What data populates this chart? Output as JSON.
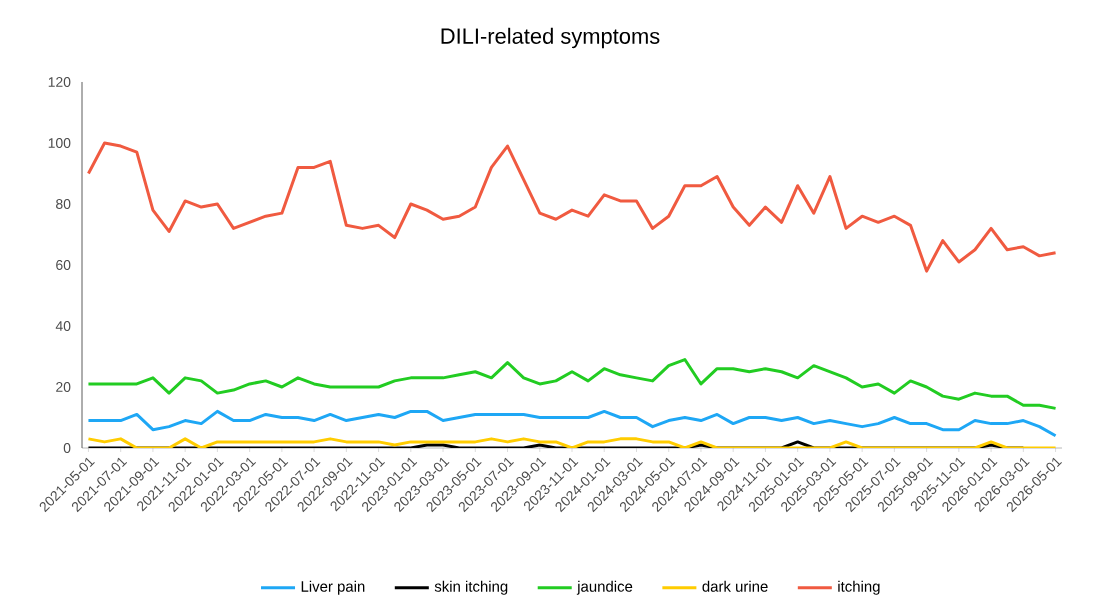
{
  "chart_data": {
    "type": "line",
    "title": "DILI-related symptoms",
    "categories": [
      "2021-05-01",
      null,
      "2021-07-01",
      null,
      "2021-09-01",
      null,
      "2021-11-01",
      null,
      "2022-01-01",
      null,
      "2022-03-01",
      null,
      "2022-05-01",
      null,
      "2022-07-01",
      null,
      "2022-09-01",
      null,
      "2022-11-01",
      null,
      "2023-01-01",
      null,
      "2023-03-01",
      null,
      "2023-05-01",
      null,
      "2023-07-01",
      null,
      "2023-09-01",
      null,
      "2023-11-01",
      null,
      "2024-01-01",
      null,
      "2024-03-01",
      null,
      "2024-05-01",
      null,
      "2024-07-01",
      null,
      "2024-09-01",
      null,
      "2024-11-01",
      null,
      "2025-01-01",
      null,
      "2025-03-01",
      null,
      "2025-05-01",
      null,
      "2025-07-01",
      null,
      "2025-09-01",
      null,
      "2025-11-01",
      null,
      "2026-01-01",
      null,
      "2026-03-01",
      null,
      "2026-05-01"
    ],
    "series": [
      {
        "name": "Liver pain",
        "color": "#1ea7f5",
        "values": [
          9,
          9,
          9,
          11,
          6,
          7,
          9,
          8,
          12,
          9,
          9,
          11,
          10,
          10,
          9,
          11,
          9,
          10,
          11,
          10,
          12,
          12,
          9,
          10,
          11,
          11,
          11,
          11,
          10,
          10,
          10,
          10,
          12,
          10,
          10,
          7,
          9,
          10,
          9,
          11,
          8,
          10,
          10,
          9,
          10,
          8,
          9,
          8,
          7,
          8,
          10,
          8,
          8,
          6,
          6,
          9,
          8,
          8,
          9,
          7,
          4
        ]
      },
      {
        "name": "skin itching",
        "color": "#000000",
        "values": [
          0,
          0,
          0,
          0,
          0,
          0,
          0,
          0,
          0,
          0,
          0,
          0,
          0,
          0,
          0,
          0,
          0,
          0,
          0,
          0,
          0,
          1,
          1,
          0,
          0,
          0,
          0,
          0,
          1,
          0,
          0,
          0,
          0,
          0,
          0,
          0,
          0,
          0,
          1,
          0,
          0,
          0,
          0,
          0,
          2,
          0,
          0,
          0,
          0,
          0,
          0,
          0,
          0,
          0,
          0,
          0,
          1,
          0,
          0,
          null,
          null
        ]
      },
      {
        "name": "jaundice",
        "color": "#22cc22",
        "values": [
          21,
          21,
          21,
          21,
          23,
          18,
          23,
          22,
          18,
          19,
          21,
          22,
          20,
          23,
          21,
          20,
          20,
          20,
          20,
          22,
          23,
          23,
          23,
          24,
          25,
          23,
          28,
          23,
          21,
          22,
          25,
          22,
          26,
          24,
          23,
          22,
          27,
          29,
          21,
          26,
          26,
          25,
          26,
          25,
          23,
          27,
          25,
          23,
          20,
          21,
          18,
          22,
          20,
          17,
          16,
          18,
          17,
          17,
          14,
          14,
          13
        ]
      },
      {
        "name": "dark urine",
        "color": "#ffcc00",
        "values": [
          3,
          2,
          3,
          0,
          0,
          0,
          3,
          0,
          2,
          2,
          2,
          2,
          2,
          2,
          2,
          3,
          2,
          2,
          2,
          1,
          2,
          2,
          2,
          2,
          2,
          3,
          2,
          3,
          2,
          2,
          0,
          2,
          2,
          3,
          3,
          2,
          2,
          0,
          2,
          0,
          0,
          0,
          0,
          0,
          0,
          0,
          0,
          2,
          0,
          0,
          0,
          0,
          0,
          0,
          0,
          0,
          2,
          0,
          0,
          0,
          0
        ]
      },
      {
        "name": "itching",
        "color": "#f05a40",
        "values": [
          90,
          100,
          99,
          97,
          78,
          71,
          81,
          79,
          80,
          72,
          74,
          76,
          77,
          92,
          92,
          94,
          73,
          72,
          73,
          69,
          80,
          78,
          75,
          76,
          79,
          92,
          99,
          88,
          77,
          75,
          78,
          76,
          83,
          81,
          81,
          72,
          76,
          86,
          86,
          89,
          79,
          73,
          79,
          74,
          86,
          77,
          89,
          72,
          76,
          74,
          76,
          73,
          58,
          68,
          61,
          65,
          72,
          65,
          66,
          63,
          64
        ]
      }
    ],
    "ylim": [
      0,
      120
    ],
    "yticks": [
      0,
      20,
      40,
      60,
      80,
      100,
      120
    ],
    "legend": "bottom",
    "marker": "none",
    "line_style": "solid"
  }
}
